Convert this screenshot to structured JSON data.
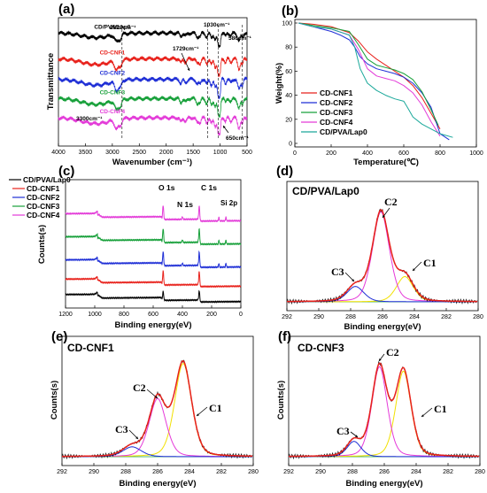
{
  "chart_data": [
    {
      "id": "a",
      "type": "line",
      "panel_label": "(a)",
      "xlabel": "Wavenumber (cm⁻¹)",
      "ylabel": "Transmittance",
      "xlim": [
        4000,
        500
      ],
      "xticks": [
        4000,
        3500,
        3000,
        2500,
        2000,
        1500,
        1000,
        500
      ],
      "series": [
        {
          "name": "CD/PVA/Lap0",
          "color": "#000000",
          "offset": 0.88,
          "amp": 0.1
        },
        {
          "name": "CD-CNF1",
          "color": "#e8221c",
          "offset": 0.68,
          "amp": 0.13
        },
        {
          "name": "CD-CNF2",
          "color": "#1f2fd6",
          "offset": 0.52,
          "amp": 0.13
        },
        {
          "name": "CD-CNF3",
          "color": "#17a03a",
          "offset": 0.37,
          "amp": 0.13
        },
        {
          "name": "CD-CNF4",
          "color": "#e33bd8",
          "offset": 0.22,
          "amp": 0.13
        }
      ],
      "annotations": [
        "2820cm⁻¹",
        "1729cm⁻¹",
        "1030cm⁻¹",
        "586cm⁻¹",
        "3300cm⁻¹",
        "650cm⁻¹"
      ],
      "dashed_lines_x": [
        2820,
        1230,
        1030,
        586
      ]
    },
    {
      "id": "b",
      "type": "line",
      "panel_label": "(b)",
      "xlabel": "Temperature(℃)",
      "ylabel": "Weight(%)",
      "xlim": [
        0,
        1000
      ],
      "ylim": [
        0,
        100
      ],
      "xticks": [
        0,
        200,
        400,
        600,
        800,
        1000
      ],
      "yticks": [
        0,
        20,
        40,
        60,
        80,
        100
      ],
      "legend": "lower-left",
      "series": [
        {
          "name": "CD-CNF1",
          "color": "#e8221c",
          "x": [
            20,
            100,
            200,
            300,
            350,
            400,
            450,
            500,
            550,
            600,
            650,
            700,
            750,
            800
          ],
          "y": [
            100,
            99,
            97,
            92,
            85,
            76,
            70,
            65,
            60,
            55,
            48,
            38,
            25,
            12
          ]
        },
        {
          "name": "CD-CNF2",
          "color": "#1f2fd6",
          "x": [
            20,
            100,
            200,
            250,
            300,
            330,
            360,
            400,
            450,
            500,
            550,
            600,
            650,
            700,
            750,
            800,
            850
          ],
          "y": [
            100,
            97,
            93,
            90,
            86,
            80,
            72,
            66,
            62,
            60,
            58,
            55,
            50,
            42,
            30,
            8,
            3
          ]
        },
        {
          "name": "CD-CNF3",
          "color": "#17a03a",
          "x": [
            20,
            100,
            200,
            300,
            350,
            400,
            450,
            500,
            550,
            600,
            650,
            700,
            750,
            790
          ],
          "y": [
            100,
            98,
            96,
            93,
            82,
            70,
            65,
            63,
            61,
            58,
            53,
            43,
            28,
            15
          ]
        },
        {
          "name": "CD-CNF4",
          "color": "#e33bd8",
          "x": [
            20,
            100,
            200,
            300,
            350,
            400,
            450,
            500,
            550,
            600,
            650,
            700,
            750,
            800
          ],
          "y": [
            100,
            97,
            95,
            90,
            78,
            62,
            56,
            54,
            52,
            48,
            42,
            32,
            18,
            6
          ]
        },
        {
          "name": "CD/PVA/Lap0",
          "color": "#1aa89a",
          "x": [
            20,
            100,
            200,
            300,
            330,
            360,
            400,
            450,
            500,
            550,
            600,
            620,
            650,
            700,
            750,
            800,
            870
          ],
          "y": [
            100,
            97,
            95,
            90,
            80,
            62,
            50,
            44,
            40,
            37,
            35,
            30,
            22,
            16,
            12,
            8,
            5
          ]
        }
      ]
    },
    {
      "id": "c",
      "type": "line",
      "panel_label": "(c)",
      "xlabel": "Binding energy(eV)",
      "ylabel": "Counts(s)",
      "xlim": [
        1200,
        0
      ],
      "xticks": [
        1200,
        1000,
        800,
        600,
        400,
        200,
        0
      ],
      "legend": "top-left",
      "peak_labels": [
        "O 1s",
        "N 1s",
        "C 1s",
        "Si 2p"
      ],
      "series": [
        {
          "name": "CD/PVA/Lap0",
          "color": "#000000",
          "offset": 0.05
        },
        {
          "name": "CD-CNF1",
          "color": "#e8221c",
          "offset": 0.17
        },
        {
          "name": "CD-CNF2",
          "color": "#1f2fd6",
          "offset": 0.32
        },
        {
          "name": "CD-CNF3",
          "color": "#17a03a",
          "offset": 0.5
        },
        {
          "name": "CD-CNF4",
          "color": "#e33bd8",
          "offset": 0.68
        }
      ]
    },
    {
      "id": "d",
      "type": "line",
      "panel_label": "(d)",
      "title": "CD/PVA/Lap0",
      "xlabel": "Binding energy(eV)",
      "xlim": [
        292,
        280
      ],
      "xticks": [
        292,
        290,
        288,
        286,
        284,
        282,
        280
      ],
      "components": [
        {
          "name": "C1",
          "center": 284.6,
          "height": 0.23,
          "width": 0.55
        },
        {
          "name": "C2",
          "center": 286.1,
          "height": 0.82,
          "width": 0.55
        },
        {
          "name": "C3",
          "center": 287.7,
          "height": 0.14,
          "width": 0.55
        }
      ],
      "peak_labels": [
        "C1",
        "C2",
        "C3"
      ]
    },
    {
      "id": "e",
      "type": "line",
      "panel_label": "(e)",
      "title": "CD-CNF1",
      "xlabel": "Binding energy(eV)",
      "xlim": [
        292,
        280
      ],
      "xticks": [
        292,
        290,
        288,
        286,
        284,
        282,
        280
      ],
      "ylabel": "Counts(s)",
      "components": [
        {
          "name": "C1",
          "center": 284.4,
          "height": 0.85,
          "width": 0.55
        },
        {
          "name": "C2",
          "center": 286.0,
          "height": 0.53,
          "width": 0.55
        },
        {
          "name": "C3",
          "center": 287.6,
          "height": 0.09,
          "width": 0.6
        }
      ],
      "peak_labels": [
        "C1",
        "C2",
        "C3"
      ]
    },
    {
      "id": "f",
      "type": "line",
      "panel_label": "(f)",
      "title": "CD-CNF3",
      "xlabel": "Binding energy(eV)",
      "xlim": [
        292,
        280
      ],
      "xticks": [
        292,
        290,
        288,
        286,
        284,
        282,
        280
      ],
      "ylabel": "Counts(s)",
      "components": [
        {
          "name": "C1",
          "center": 284.8,
          "height": 0.78,
          "width": 0.5
        },
        {
          "name": "C2",
          "center": 286.3,
          "height": 0.82,
          "width": 0.5
        },
        {
          "name": "C3",
          "center": 287.9,
          "height": 0.14,
          "width": 0.45
        }
      ],
      "peak_labels": [
        "C1",
        "C2",
        "C3"
      ]
    }
  ],
  "colors": {
    "envelope": "#e8221c",
    "raw": "#1b1b1b",
    "c1": "#f2e000",
    "c2": "#e53ad9",
    "c3": "#1f2fd6",
    "baseline": "#17a03a"
  }
}
